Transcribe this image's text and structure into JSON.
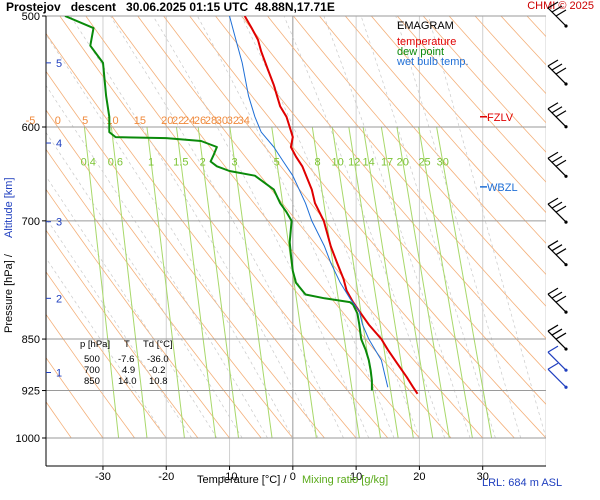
{
  "header": {
    "title": "Prostejov   descent   30.06.2025 01:15 UTC  48.88N,17.71E",
    "copyright": "CHMI © 2025"
  },
  "legend": {
    "title": "EMAGRAM",
    "temperature": "temperature",
    "dew_point": "dew point",
    "wet_bulb": "wet bulb temp."
  },
  "markers": {
    "fzlv": "FZLV",
    "wbzl": "WBZL"
  },
  "lrl": "LRL: 684 m ASL",
  "y_axis_label_left": "Pressure [hPa]  /",
  "y_axis_label_right": "Altitude [km]",
  "x_axis_label_left": "Temperature [°C]  /",
  "x_axis_label_right": "Mixing ratio [g/kg]",
  "table": {
    "headers": [
      "p [hPa]",
      "T",
      "Td [°C]"
    ],
    "rows": [
      [
        "500",
        "-7.6",
        "-36.0"
      ],
      [
        "700",
        "4.9",
        "-0.2"
      ],
      [
        "850",
        "14.0",
        "10.8"
      ]
    ]
  },
  "chart_data": {
    "type": "line",
    "title": "EMAGRAM",
    "xlabel": "Temperature [°C]  /  Mixing ratio [g/kg]",
    "ylabel": "Pressure [hPa]  /  Altitude [km]",
    "xlim": [
      -39,
      40
    ],
    "ylim_pressure": [
      1000,
      500
    ],
    "log_pressure_axis": true,
    "x_ticks": [
      -30,
      -20,
      -10,
      0,
      10,
      20,
      30
    ],
    "pressure_ticks": [
      500,
      600,
      700,
      850,
      925,
      1000
    ],
    "altitude_ticks_km": [
      1,
      2,
      3,
      4,
      5
    ],
    "altitude_tick_pressures": [
      898,
      795,
      701,
      616,
      540
    ],
    "dry_adiabat_labels": [
      "-5",
      "0",
      "5",
      "10",
      "15",
      "20",
      "22",
      "24",
      "26",
      "28",
      "30",
      "32",
      "34"
    ],
    "mixing_ratio_labels": [
      "0.4",
      "0.6",
      "1",
      "1.5",
      "2",
      "3",
      "5",
      "8",
      "10",
      "12",
      "14",
      "17",
      "20",
      "25",
      "30"
    ],
    "fzlv_pressure": 590,
    "wbzl_pressure": 662,
    "series": [
      {
        "name": "temperature",
        "color": "#e00000",
        "points": [
          [
            19.7,
            930
          ],
          [
            19,
            920
          ],
          [
            18,
            905
          ],
          [
            16.5,
            885
          ],
          [
            15,
            865
          ],
          [
            14,
            850
          ],
          [
            12,
            830
          ],
          [
            10.5,
            812
          ],
          [
            9.5,
            800
          ],
          [
            8.5,
            785
          ],
          [
            8,
            770
          ],
          [
            7,
            750
          ],
          [
            6,
            730
          ],
          [
            4.9,
            700
          ],
          [
            3.5,
            680
          ],
          [
            3,
            665
          ],
          [
            1.5,
            640
          ],
          [
            0.5,
            630
          ],
          [
            -0.3,
            620
          ],
          [
            0,
            610
          ],
          [
            -0.5,
            600
          ],
          [
            -1,
            590
          ],
          [
            -2,
            580
          ],
          [
            -2.5,
            570
          ],
          [
            -3,
            560
          ],
          [
            -4,
            545
          ],
          [
            -5,
            530
          ],
          [
            -5.5,
            520
          ],
          [
            -6.5,
            510
          ],
          [
            -7.6,
            500
          ]
        ]
      },
      {
        "name": "dew point",
        "color": "#0a8a0a",
        "points": [
          [
            12.5,
            925
          ],
          [
            12.5,
            910
          ],
          [
            12.3,
            895
          ],
          [
            12,
            880
          ],
          [
            11.5,
            865
          ],
          [
            10.8,
            850
          ],
          [
            10.5,
            830
          ],
          [
            10.2,
            815
          ],
          [
            9.5,
            803
          ],
          [
            9,
            800
          ],
          [
            5,
            795
          ],
          [
            2,
            790
          ],
          [
            0.5,
            775
          ],
          [
            0,
            760
          ],
          [
            -0.3,
            740
          ],
          [
            -0.5,
            725
          ],
          [
            -0.2,
            700
          ],
          [
            -1,
            690
          ],
          [
            -2,
            680
          ],
          [
            -3,
            665
          ],
          [
            -6,
            650
          ],
          [
            -10,
            645
          ],
          [
            -12,
            640
          ],
          [
            -13,
            635
          ],
          [
            -12.5,
            628
          ],
          [
            -12,
            620
          ],
          [
            -14.5,
            614
          ],
          [
            -20,
            611
          ],
          [
            -28,
            610
          ],
          [
            -29,
            605
          ],
          [
            -29,
            590
          ],
          [
            -29.5,
            570
          ],
          [
            -30,
            540
          ],
          [
            -32,
            525
          ],
          [
            -31.5,
            510
          ],
          [
            -36,
            500
          ]
        ]
      },
      {
        "name": "wet bulb temp.",
        "color": "#1f6fd6",
        "points": [
          [
            15,
            920
          ],
          [
            14.5,
            900
          ],
          [
            14,
            880
          ],
          [
            13,
            865
          ],
          [
            12,
            850
          ],
          [
            11,
            830
          ],
          [
            10.5,
            812
          ],
          [
            9,
            795
          ],
          [
            7.5,
            775
          ],
          [
            6,
            750
          ],
          [
            5,
            730
          ],
          [
            3,
            700
          ],
          [
            2,
            680
          ],
          [
            1,
            665
          ],
          [
            0,
            650
          ],
          [
            -1.5,
            635
          ],
          [
            -3,
            620
          ],
          [
            -5,
            605
          ],
          [
            -6,
            590
          ],
          [
            -7,
            570
          ],
          [
            -8,
            540
          ],
          [
            -9,
            520
          ],
          [
            -10,
            500
          ]
        ]
      }
    ],
    "wind_barb_pressures": [
      500,
      550,
      590,
      640,
      690,
      740,
      800,
      850,
      880,
      905
    ],
    "grid": true
  }
}
